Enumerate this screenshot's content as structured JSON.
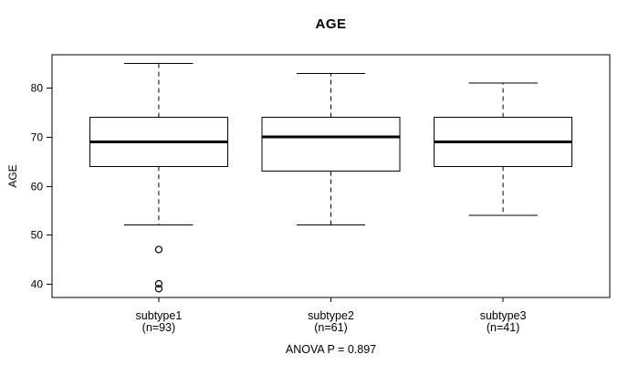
{
  "chart_data": {
    "type": "boxplot",
    "title": "AGE",
    "ylabel": "AGE",
    "footnote": "ANOVA P = 0.897",
    "y_ticks": [
      40,
      50,
      60,
      70,
      80
    ],
    "ylim": [
      37.2,
      86.8
    ],
    "grid": false,
    "groups": [
      {
        "label": "subtype1",
        "count_label": "(n=93)",
        "whisker_low": 52,
        "q1": 64,
        "median": 69,
        "q3": 74,
        "whisker_high": 85,
        "outliers": [
          47,
          40,
          39
        ]
      },
      {
        "label": "subtype2",
        "count_label": "(n=61)",
        "whisker_low": 52,
        "q1": 63,
        "median": 70,
        "q3": 74,
        "whisker_high": 83,
        "outliers": []
      },
      {
        "label": "subtype3",
        "count_label": "(n=41)",
        "whisker_low": 54,
        "q1": 64,
        "median": 69,
        "q3": 74,
        "whisker_high": 81,
        "outliers": []
      }
    ],
    "colors": {
      "line": "#000000",
      "box_fill": "#ffffff",
      "background": "#ffffff"
    }
  }
}
